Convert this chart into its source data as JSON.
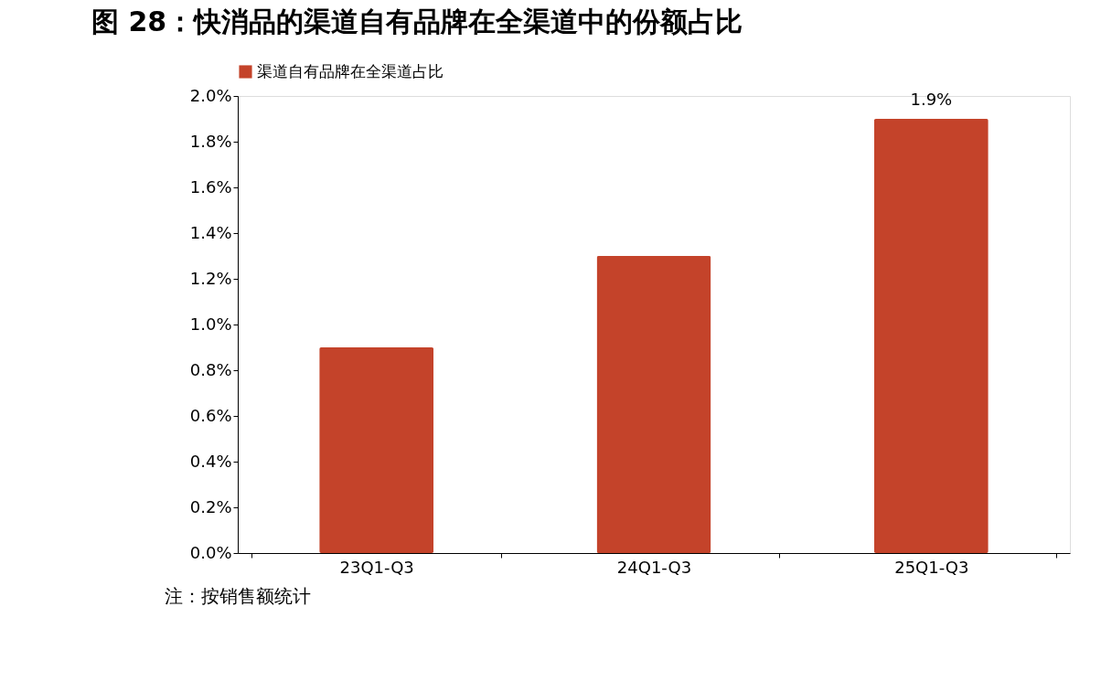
{
  "chart_data": {
    "type": "bar",
    "title": "图 28：快消品的渠道自有品牌在全渠道中的份额占比",
    "categories": [
      "23Q1-Q3",
      "24Q1-Q3",
      "25Q1-Q3"
    ],
    "series": [
      {
        "name": "渠道自有品牌在全渠道占比",
        "color": "#c4432a",
        "values": [
          0.9,
          1.3,
          1.9
        ],
        "value_labels": [
          null,
          null,
          "1.9%"
        ]
      }
    ],
    "ylim": [
      0,
      2.0
    ],
    "yticks": [
      {
        "value": 0,
        "label": "0.0%"
      },
      {
        "value": 0.2,
        "label": "0.2%"
      },
      {
        "value": 0.4,
        "label": "0.4%"
      },
      {
        "value": 0.6,
        "label": "0.6%"
      },
      {
        "value": 0.8,
        "label": "0.8%"
      },
      {
        "value": 1.0,
        "label": "1.0%"
      },
      {
        "value": 1.2,
        "label": "1.2%"
      },
      {
        "value": 1.4,
        "label": "1.4%"
      },
      {
        "value": 1.6,
        "label": "1.6%"
      },
      {
        "value": 1.8,
        "label": "1.8%"
      },
      {
        "value": 2.0,
        "label": "2.0%"
      }
    ],
    "grid": false,
    "legend": "top",
    "annotations": [
      "注：按销售额统计"
    ]
  }
}
